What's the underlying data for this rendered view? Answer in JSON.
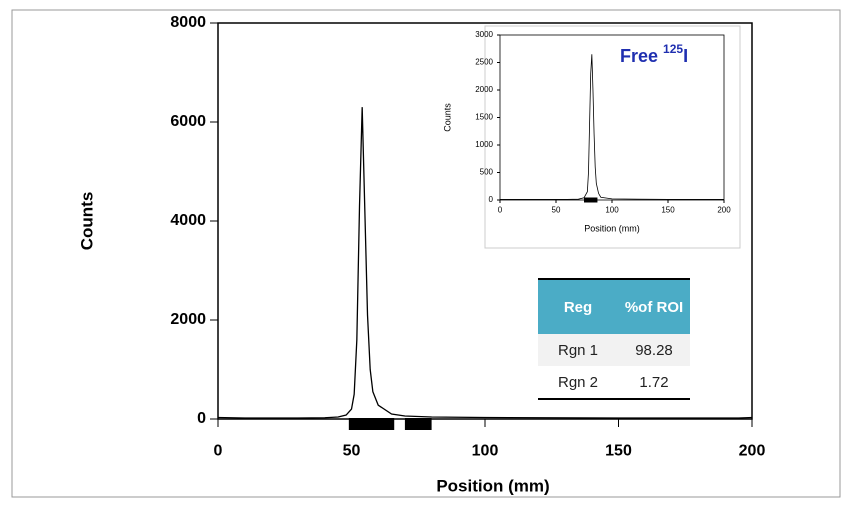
{
  "chart_data": [
    {
      "type": "line",
      "y_label": "Counts",
      "x_label": "Position (mm)",
      "x": [
        0,
        10,
        20,
        30,
        40,
        45,
        48,
        50,
        51,
        52,
        53,
        54,
        55,
        56,
        57,
        58,
        60,
        65,
        70,
        80,
        100,
        150,
        195,
        200
      ],
      "values": [
        30,
        20,
        20,
        20,
        25,
        40,
        80,
        200,
        500,
        1600,
        4300,
        6300,
        4200,
        2100,
        1000,
        550,
        280,
        100,
        60,
        40,
        30,
        20,
        20,
        30
      ],
      "color": "#000000",
      "regions": [
        {
          "start": 49,
          "end": 66
        },
        {
          "start": 70,
          "end": 80
        }
      ],
      "xlim": [
        0,
        200
      ],
      "ylim": [
        0,
        8000
      ],
      "xticks": [
        0,
        50,
        100,
        150,
        200
      ],
      "yticks": [
        0,
        2000,
        4000,
        6000,
        8000
      ]
    },
    {
      "type": "line",
      "title": "Free ",
      "title_sup": "125",
      "title_tail": "I",
      "y_label": "Counts",
      "x_label": "Position (mm)",
      "x": [
        0,
        20,
        40,
        60,
        70,
        75,
        78,
        79,
        80,
        81,
        82,
        83,
        84,
        85,
        86,
        88,
        90,
        100,
        150,
        200
      ],
      "values": [
        10,
        10,
        10,
        10,
        15,
        40,
        150,
        500,
        1400,
        2300,
        2650,
        2000,
        1200,
        600,
        300,
        120,
        50,
        20,
        10,
        10
      ],
      "color": "#000000",
      "regions": [
        {
          "start": 75,
          "end": 87
        }
      ],
      "xlim": [
        0,
        200
      ],
      "ylim": [
        0,
        3000
      ],
      "xticks": [
        0,
        50,
        100,
        150,
        200
      ],
      "yticks": [
        0,
        500,
        1000,
        1500,
        2000,
        2500,
        3000
      ]
    }
  ],
  "table": {
    "header": [
      "Reg",
      "%of ROI"
    ],
    "rows": [
      [
        "Rgn 1",
        "98.28"
      ],
      [
        "Rgn 2",
        "1.72"
      ]
    ]
  }
}
